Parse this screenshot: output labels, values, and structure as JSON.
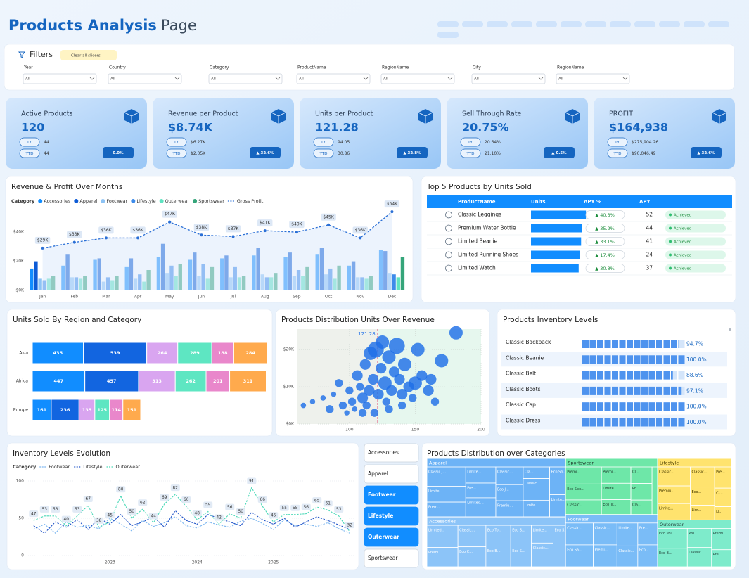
{
  "header": {
    "title": "Products Analysis",
    "title_suffix": "Page"
  },
  "filters": {
    "label": "Filters",
    "clear": "Clear all slicers",
    "slicers": [
      {
        "name": "Year",
        "value": "All"
      },
      {
        "name": "Country",
        "value": "All"
      },
      {
        "name": "Category",
        "value": "All"
      },
      {
        "name": "ProductName",
        "value": "All"
      },
      {
        "name": "RegionName",
        "value": "All"
      },
      {
        "name": "City",
        "value": "All"
      },
      {
        "name": "RegionName",
        "value": "All"
      }
    ]
  },
  "kpis": [
    {
      "title": "Active Products",
      "value": "120",
      "ly_label": "LY",
      "ly": "44",
      "ytd_label": "YTD",
      "ytd": "44",
      "change": "0.0%"
    },
    {
      "title": "Revenue per Product",
      "value": "$8.74K",
      "ly_label": "LY",
      "ly": "$6.27K",
      "ytd_label": "YTD",
      "ytd": "$2.05K",
      "change": "▲ 32.6%"
    },
    {
      "title": "Units per Product",
      "value": "121.28",
      "ly_label": "LY",
      "ly": "94.05",
      "ytd_label": "YTD",
      "ytd": "30.86",
      "change": "▲ 32.8%"
    },
    {
      "title": "Sell Through Rate",
      "value": "20.75%",
      "ly_label": "LY",
      "ly": "20.64%",
      "ytd_label": "YTD",
      "ytd": "21.10%",
      "change": "▲ 0.5%"
    },
    {
      "title": "PROFIT",
      "value": "$164,938",
      "ly_label": "LY",
      "ly": "$275,904.26",
      "ytd_label": "YTD",
      "ytd": "$90,046.49",
      "change": "▲ 32.6%"
    }
  ],
  "top_products": {
    "title": "Top 5 Products by Units Sold",
    "columns": [
      "ProductName",
      "Units",
      "ΔPY %",
      "ΔPY"
    ],
    "bar_color": "#118DFF",
    "units_xlim": [
      0,
      220
    ],
    "rows": [
      {
        "product": "Classic Leggings",
        "units": 181,
        "change_pct": "▲ 40.3%",
        "change": 52,
        "status": "Achieved"
      },
      {
        "product": "Premium Water Bottle",
        "units": 169,
        "change_pct": "▲ 35.2%",
        "change": 44,
        "status": "Achieved"
      },
      {
        "product": "Limited Beanie",
        "units": 165,
        "change_pct": "▲ 33.1%",
        "change": 41,
        "status": "Achieved"
      },
      {
        "product": "Limited Running Shoes",
        "units": 162,
        "change_pct": "▲ 17.4%",
        "change": 24,
        "status": "Achieved"
      },
      {
        "product": "Limited Watch",
        "units": 157,
        "change_pct": "▲ 30.8%",
        "change": 37,
        "status": "Achieved"
      }
    ]
  },
  "category_buttons": {
    "options": [
      "Accessories",
      "Apparel",
      "Footwear",
      "Lifestyle",
      "Outerwear",
      "Sportswear"
    ],
    "selected": [
      false,
      false,
      true,
      true,
      true,
      false
    ]
  },
  "chart_data": [
    {
      "type": "bar",
      "title": "Revenue & Profit Over Months",
      "legend_title": "Category",
      "categories": [
        "Jan",
        "Feb",
        "Mar",
        "Apr",
        "May",
        "Jun",
        "Jul",
        "Aug",
        "Sep",
        "Oct",
        "Nov",
        "Dec"
      ],
      "series": [
        {
          "name": "Accessories",
          "color": "#118DFF",
          "values": [
            15000,
            17000,
            21000,
            16000,
            23000,
            21000,
            22000,
            24000,
            23000,
            25000,
            17000,
            28000
          ]
        },
        {
          "name": "Apparel",
          "color": "#0D5BD6",
          "values": [
            20000,
            25000,
            22000,
            22000,
            32000,
            26000,
            24000,
            29000,
            26000,
            29000,
            20000,
            27000
          ]
        },
        {
          "name": "Footwear",
          "color": "#8DC3F5",
          "values": [
            8000,
            9000,
            6000,
            8000,
            12000,
            10000,
            9000,
            11000,
            10000,
            11000,
            9000,
            12000
          ]
        },
        {
          "name": "Lifestyle",
          "color": "#3D8BEA",
          "values": [
            7000,
            9000,
            9000,
            11000,
            17000,
            18000,
            16000,
            9000,
            14000,
            15000,
            9000,
            11000
          ]
        },
        {
          "name": "Outerwear",
          "color": "#5FE3C1",
          "values": [
            8000,
            8000,
            7000,
            6000,
            10000,
            8000,
            9000,
            9000,
            10000,
            8000,
            8000,
            9000
          ]
        },
        {
          "name": "Sportswear",
          "color": "#35A57A",
          "values": [
            10000,
            10000,
            10000,
            14000,
            18000,
            16000,
            10000,
            12000,
            16000,
            17000,
            10000,
            23000
          ]
        },
        {
          "name": "Gross Profit",
          "type": "line",
          "color": "#2A6FD6",
          "values": [
            29000,
            33000,
            36000,
            36000,
            47000,
            38000,
            37000,
            41000,
            40000,
            45000,
            36000,
            54000
          ],
          "value_labels": [
            "$29K",
            "$33K",
            "$36K",
            "$36K",
            "$47K",
            "$38K",
            "$37K",
            "$41K",
            "$40K",
            "$45K",
            "$36K",
            "$54K"
          ]
        }
      ],
      "ylim": [
        0,
        56000
      ],
      "yticks": [
        {
          "value": 0,
          "label": "$0K"
        },
        {
          "value": 20000,
          "label": "$20K"
        },
        {
          "value": 40000,
          "label": "$40K"
        }
      ]
    },
    {
      "type": "stacked_bar",
      "title": "Units Sold By Region and Category",
      "categories": [
        "Asia",
        "Africa",
        "Europe"
      ],
      "series": [
        {
          "color": "#118DFF",
          "values": [
            435,
            447,
            161
          ]
        },
        {
          "color": "#1265E0",
          "values": [
            539,
            457,
            236
          ]
        },
        {
          "color": "#D9A5F0",
          "values": [
            264,
            313,
            135
          ]
        },
        {
          "color": "#5EE6C2",
          "values": [
            289,
            262,
            125
          ]
        },
        {
          "color": "#E987CB",
          "values": [
            188,
            201,
            114
          ]
        },
        {
          "color": "#FFAA4D",
          "values": [
            284,
            311,
            151
          ]
        }
      ],
      "xlim": [
        0,
        2000
      ]
    },
    {
      "type": "scatter",
      "title": "Products Distribution Units Over Revenue",
      "color": "#1E6FE8",
      "x": [
        65,
        72,
        80,
        85,
        88,
        92,
        95,
        98,
        100,
        102,
        104,
        106,
        108,
        110,
        112,
        113,
        115,
        116,
        118,
        119,
        120,
        122,
        124,
        125,
        127,
        128,
        130,
        132,
        134,
        136,
        138,
        140,
        142,
        145,
        148,
        150,
        152,
        155,
        160,
        162,
        165,
        170,
        181,
        110,
        130,
        140
      ],
      "y": [
        5000,
        6000,
        7000,
        4000,
        8000,
        11000,
        5000,
        3000,
        9000,
        6000,
        4000,
        13000,
        10000,
        7000,
        16000,
        5000,
        9000,
        19000,
        12000,
        3000,
        20000,
        8000,
        15000,
        22000,
        11000,
        6000,
        18000,
        9000,
        14000,
        21000,
        12000,
        8000,
        16000,
        10000,
        7000,
        11000,
        20000,
        13000,
        9000,
        12000,
        6000,
        17000,
        24500,
        3000,
        4000,
        5000
      ],
      "sizes": [
        2,
        2,
        2,
        3,
        2,
        3,
        3,
        2,
        3,
        3,
        2,
        4,
        3,
        4,
        4,
        3,
        4,
        5,
        4,
        3,
        6,
        4,
        4,
        5,
        5,
        3,
        5,
        4,
        4,
        6,
        4,
        4,
        5,
        4,
        3,
        5,
        5,
        4,
        4,
        4,
        3,
        5,
        5,
        3,
        3,
        3
      ],
      "reference_x": 121.28,
      "xlim": [
        60,
        200
      ],
      "xticks": [
        100,
        150,
        200
      ],
      "ylim": [
        0,
        25500
      ],
      "yticks": [
        {
          "value": 0,
          "label": "$0K"
        },
        {
          "value": 10000,
          "label": "$10K"
        },
        {
          "value": 20000,
          "label": "$20K"
        }
      ]
    },
    {
      "type": "progress",
      "title": "Products Inventory Levels",
      "color": "#4E93EE",
      "categories": [
        "Classic Backpack",
        "Classic Beanie",
        "Classic Belt",
        "Classic Boots",
        "Classic Cap",
        "Classic Dress"
      ],
      "values": [
        94.7,
        100,
        88.6,
        97.1,
        100,
        100
      ],
      "value_labels": [
        "94.7%",
        "100.0%",
        "88.6%",
        "97.1%",
        "100.0%",
        "100.0%"
      ],
      "xlim": [
        0,
        100
      ]
    },
    {
      "type": "line",
      "title": "Inventory Levels Evolution",
      "legend_title": "Category",
      "categories": [
        null,
        null,
        null,
        null,
        null,
        null,
        null,
        "2023",
        null,
        null,
        null,
        null,
        null,
        null,
        null,
        "2024",
        null,
        null,
        null,
        null,
        null,
        null,
        "2025",
        null,
        null,
        null,
        null,
        null,
        null,
        null
      ],
      "series": [
        {
          "name": "Footwear",
          "color": "#7FB8F0",
          "values": [
            35,
            42,
            30,
            45,
            38,
            40,
            36,
            50,
            42,
            33,
            47,
            39,
            44,
            52,
            40,
            37,
            45,
            41,
            38,
            46,
            50,
            43,
            35,
            48,
            40,
            42,
            39,
            44,
            36,
            30
          ]
        },
        {
          "name": "Lifestyle",
          "color": "#2255C8",
          "values": [
            40,
            30,
            45,
            38,
            48,
            35,
            50,
            42,
            55,
            40,
            45,
            52,
            38,
            60,
            47,
            42,
            55,
            50,
            45,
            40,
            58,
            48,
            42,
            50,
            38,
            45,
            52,
            47,
            41,
            35
          ]
        },
        {
          "name": "Outerwear",
          "color": "#4CD9B8",
          "values": [
            47,
            53,
            53,
            40,
            53,
            67,
            38,
            45,
            80,
            50,
            62,
            44,
            69,
            82,
            66,
            48,
            59,
            42,
            56,
            50,
            91,
            66,
            45,
            55,
            55,
            56,
            65,
            61,
            53,
            32
          ]
        }
      ],
      "ylim": [
        0,
        100
      ],
      "yticks": [
        0,
        50,
        100
      ]
    },
    {
      "type": "treemap",
      "title": "Products Distribution over Categories",
      "groups": [
        {
          "name": "Apparel",
          "color": "#6DB3F6",
          "label_color": "#ffffff",
          "items": [
            {
              "label": "Classic J...",
              "value": 17
            },
            {
              "label": "Limite...",
              "value": 14
            },
            {
              "label": "Prem...",
              "value": 13
            },
            {
              "label": "Limite...",
              "value": 11
            },
            {
              "label": "Pre...",
              "value": 10
            },
            {
              "label": "Limited...",
              "value": 13
            },
            {
              "label": "Classic...",
              "value": 11
            },
            {
              "label": "Eco J...",
              "value": 10
            },
            {
              "label": "Premiu...",
              "value": 10
            },
            {
              "label": "Cla...",
              "value": 7
            },
            {
              "label": "Classic T...",
              "value": 13
            },
            {
              "label": "Limite...",
              "value": 10
            },
            {
              "label": "Eco Sh...",
              "value": 10
            },
            {
              "label": "Limite...",
              "value": 8
            }
          ]
        },
        {
          "name": "Accessories",
          "color": "#8CC4F8",
          "label_color": "#ffffff",
          "items": [
            {
              "label": "Limited...",
              "value": 16
            },
            {
              "label": "Premi...",
              "value": 14
            },
            {
              "label": "Classic...",
              "value": 14
            },
            {
              "label": "Eco C...",
              "value": 13
            },
            {
              "label": "Eco To...",
              "value": 12
            },
            {
              "label": "Eco B...",
              "value": 12
            },
            {
              "label": "Eco S...",
              "value": 10
            },
            {
              "label": "Eco S...",
              "value": 10
            },
            {
              "label": "Limite...",
              "value": 9
            },
            {
              "label": "Classic...",
              "value": 12
            },
            {
              "label": "Eco S...",
              "value": 12
            }
          ]
        },
        {
          "name": "Sportswear",
          "color": "#6EE7A8",
          "label_color": "#1f3b2c",
          "items": [
            {
              "label": "Premi...",
              "value": 14
            },
            {
              "label": "Eco Spo...",
              "value": 13
            },
            {
              "label": "Classic...",
              "value": 12
            },
            {
              "label": "Premi...",
              "value": 11
            },
            {
              "label": "Limite...",
              "value": 11
            },
            {
              "label": "Eco Tr...",
              "value": 10
            },
            {
              "label": "Cl...",
              "value": 8
            },
            {
              "label": "Pr...",
              "value": 8
            },
            {
              "label": "Cla...",
              "value": 7
            },
            {
              "label": "Eco...",
              "value": 6
            }
          ]
        },
        {
          "name": "Footwear",
          "color": "#7ABCF7",
          "label_color": "#ffffff",
          "items": [
            {
              "label": "Classic...",
              "value": 14
            },
            {
              "label": "Eco Sa...",
              "value": 14
            },
            {
              "label": "Classic...",
              "value": 12
            },
            {
              "label": "Premi...",
              "value": 12
            },
            {
              "label": "Limite...",
              "value": 11
            },
            {
              "label": "Classic...",
              "value": 10
            },
            {
              "label": "Pre...",
              "value": 10
            },
            {
              "label": "Eco...",
              "value": 10
            }
          ]
        },
        {
          "name": "Lifestyle",
          "color": "#FFE36E",
          "label_color": "#4a3d00",
          "items": [
            {
              "label": "Classic...",
              "value": 14
            },
            {
              "label": "Premiu...",
              "value": 13
            },
            {
              "label": "Limite...",
              "value": 12
            },
            {
              "label": "Classic...",
              "value": 11
            },
            {
              "label": "Eco...",
              "value": 10
            },
            {
              "label": "Lim...",
              "value": 8
            },
            {
              "label": "Pre...",
              "value": 8
            },
            {
              "label": "Cl...",
              "value": 7
            },
            {
              "label": "Li...",
              "value": 5
            }
          ]
        },
        {
          "name": "Outerwear",
          "color": "#7EEBCB",
          "label_color": "#1f3b34",
          "items": [
            {
              "label": "Eco Pol...",
              "value": 14
            },
            {
              "label": "Eco B...",
              "value": 13
            },
            {
              "label": "Pro...",
              "value": 11
            },
            {
              "label": "Classic...",
              "value": 11
            },
            {
              "label": "Premi...",
              "value": 10
            },
            {
              "label": "Pre...",
              "value": 8
            }
          ]
        }
      ]
    }
  ]
}
